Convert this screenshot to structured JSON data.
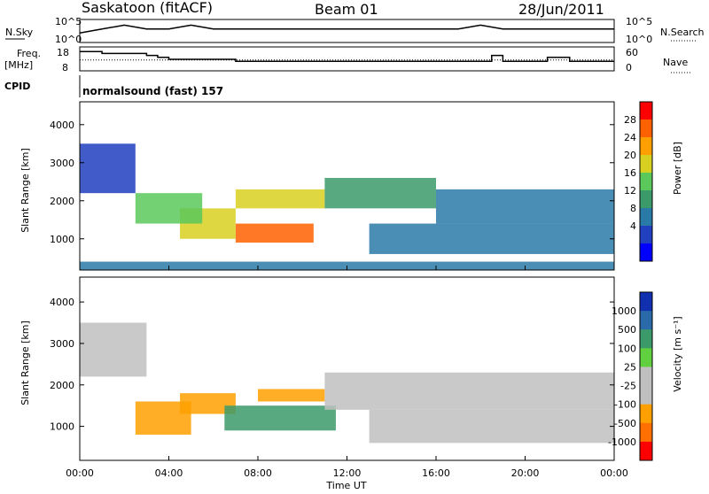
{
  "header": {
    "station": "Saskatoon (fitACF)",
    "beam": "Beam 01",
    "date": "28/Jun/2011"
  },
  "top_panel": {
    "left_label": "N.Sky",
    "left_ticks": [
      "10^5",
      "10^0"
    ],
    "right_label": "N.Search",
    "right_ticks": [
      "10^5",
      "10^0"
    ]
  },
  "freq_panel": {
    "left_label_1": "Freq.",
    "left_label_2": "[MHz]",
    "left_ticks": [
      "18",
      "8"
    ],
    "right_label": "Nave",
    "right_ticks": [
      "60",
      "0"
    ]
  },
  "cpid_panel": {
    "label": "CPID",
    "text": "normalsound (fast) 157"
  },
  "x_axis": {
    "label": "Time UT",
    "ticks": [
      "00:00",
      "04:00",
      "08:00",
      "12:00",
      "16:00",
      "20:00",
      "00:00"
    ]
  },
  "power_panel": {
    "ylabel": "Slant Range [km]",
    "yticks": [
      "4000",
      "3000",
      "2000",
      "1000"
    ],
    "colorbar_label": "Power [dB]",
    "colorbar_ticks": [
      "28",
      "24",
      "20",
      "16",
      "12",
      "8",
      "4"
    ],
    "colors": [
      "#0000ff",
      "#2040c0",
      "#2a7aa8",
      "#3c9a6a",
      "#5ac85a",
      "#d8d020",
      "#ffa000",
      "#ff6000",
      "#ff0000"
    ]
  },
  "velocity_panel": {
    "ylabel": "Slant Range [km]",
    "yticks": [
      "4000",
      "3000",
      "2000",
      "1000"
    ],
    "colorbar_label": "Velocity [m s⁻¹]",
    "colorbar_ticks": [
      "1000",
      "500",
      "100",
      "25",
      "-25",
      "-100",
      "-500",
      "-1000"
    ],
    "colors": [
      "#1030b0",
      "#2a6aa8",
      "#3c9a6a",
      "#60d040",
      "#c0c0c0",
      "#c0c0c0",
      "#ffa000",
      "#ff7000",
      "#ff0000"
    ]
  },
  "chart_data": [
    {
      "type": "line",
      "title": "N.Sky / N.Search",
      "x": [
        0,
        1,
        2,
        3,
        4,
        5,
        6,
        7,
        8,
        9,
        10,
        11,
        12,
        13,
        14,
        15,
        16,
        17,
        18,
        19,
        20,
        21,
        22,
        23,
        24
      ],
      "series": [
        {
          "name": "N.Sky",
          "values": [
            2,
            3,
            4,
            3,
            3,
            4,
            3,
            3,
            3,
            3,
            3,
            3,
            3,
            3,
            3,
            3,
            3,
            3,
            4,
            3,
            3,
            3,
            3,
            3,
            3
          ]
        }
      ]
    },
    {
      "type": "line",
      "title": "Freq. [MHz]",
      "x": [
        0,
        1,
        2,
        3,
        3.5,
        4,
        5,
        6,
        7,
        8,
        9,
        10,
        11,
        12,
        13,
        14,
        15,
        16,
        17,
        18,
        18.5,
        19,
        20,
        21,
        22,
        23,
        24
      ],
      "series": [
        {
          "name": "Freq.",
          "values": [
            17,
            16,
            16,
            15,
            14,
            13,
            13,
            13,
            12,
            12,
            12,
            12,
            12,
            12,
            12,
            12,
            12,
            12,
            12,
            12,
            15,
            12,
            12,
            14,
            12,
            12,
            12
          ]
        },
        {
          "name": "Nave",
          "values": [
            28,
            28,
            28,
            28,
            28,
            28,
            28,
            28,
            28,
            28,
            28,
            28,
            28,
            28,
            28,
            28,
            28,
            28,
            28,
            28,
            28,
            28,
            28,
            28,
            28,
            28,
            28
          ]
        }
      ]
    },
    {
      "type": "heatmap",
      "title": "Power [dB]",
      "xlabel": "Time UT",
      "ylabel": "Slant Range [km]",
      "xlim": [
        0,
        24
      ],
      "ylim": [
        180,
        4600
      ],
      "regions": [
        {
          "t": [
            7.0,
            10.5
          ],
          "r": [
            900,
            1400
          ],
          "value": 28
        },
        {
          "t": [
            4.5,
            7.0
          ],
          "r": [
            1000,
            1800
          ],
          "value": 20
        },
        {
          "t": [
            2.5,
            5.5
          ],
          "r": [
            1400,
            2200
          ],
          "value": 16
        },
        {
          "t": [
            7.0,
            11.0
          ],
          "r": [
            1800,
            2300
          ],
          "value": 22
        },
        {
          "t": [
            0.0,
            2.5
          ],
          "r": [
            2200,
            3500
          ],
          "value": 6
        },
        {
          "t": [
            11.0,
            16.0
          ],
          "r": [
            1800,
            2600
          ],
          "value": 12
        },
        {
          "t": [
            16.0,
            24.0
          ],
          "r": [
            1400,
            2300
          ],
          "value": 10
        },
        {
          "t": [
            13.0,
            24.0
          ],
          "r": [
            600,
            1400
          ],
          "value": 10
        },
        {
          "t": [
            0.0,
            24.0
          ],
          "r": [
            180,
            400
          ],
          "value": 8
        }
      ]
    },
    {
      "type": "heatmap",
      "title": "Velocity [m s⁻¹]",
      "xlabel": "Time UT",
      "ylabel": "Slant Range [km]",
      "xlim": [
        0,
        24
      ],
      "ylim": [
        180,
        4600
      ],
      "regions": [
        {
          "t": [
            2.5,
            5.0
          ],
          "r": [
            800,
            1600
          ],
          "value": -100
        },
        {
          "t": [
            4.5,
            7.0
          ],
          "r": [
            1300,
            1800
          ],
          "value": -100
        },
        {
          "t": [
            6.5,
            11.5
          ],
          "r": [
            900,
            1500
          ],
          "value": 100
        },
        {
          "t": [
            8.0,
            11.0
          ],
          "r": [
            1600,
            1900
          ],
          "value": -100
        },
        {
          "t": [
            0.0,
            3.0
          ],
          "r": [
            2200,
            3500
          ],
          "value": 0
        },
        {
          "t": [
            11.0,
            24.0
          ],
          "r": [
            1400,
            2300
          ],
          "value": 0
        },
        {
          "t": [
            13.0,
            24.0
          ],
          "r": [
            600,
            1400
          ],
          "value": 0
        }
      ]
    }
  ]
}
